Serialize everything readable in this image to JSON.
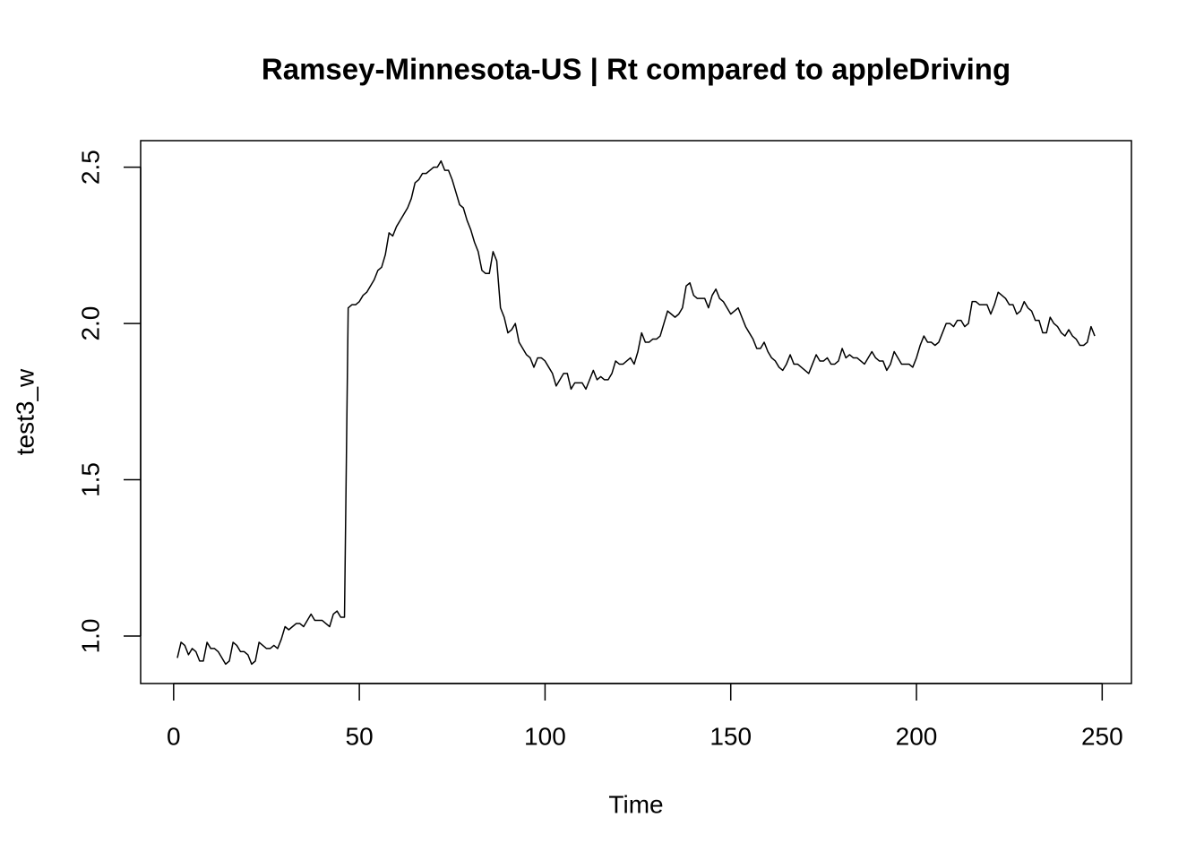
{
  "chart_data": {
    "type": "line",
    "title": "Ramsey-Minnesota-US | Rt compared to appleDriving",
    "x_label": "Time",
    "y_label": "test3_w",
    "xlim": [
      -8.88,
      257.88
    ],
    "ylim": [
      0.848,
      2.585
    ],
    "xticks": [
      0,
      50,
      100,
      150,
      200,
      250
    ],
    "yticks": [
      {
        "value": 1,
        "label": "1.0"
      },
      {
        "value": 1.5,
        "label": "1.5"
      },
      {
        "value": 2,
        "label": "2.0"
      },
      {
        "value": 2.5,
        "label": "2.5"
      }
    ],
    "grid": false,
    "x": [
      1,
      2,
      3,
      4,
      5,
      6,
      7,
      8,
      9,
      10,
      11,
      12,
      13,
      14,
      15,
      16,
      17,
      18,
      19,
      20,
      21,
      22,
      23,
      24,
      25,
      26,
      27,
      28,
      29,
      30,
      31,
      32,
      33,
      34,
      35,
      36,
      37,
      38,
      39,
      40,
      41,
      42,
      43,
      44,
      45,
      46,
      47,
      48,
      49,
      50,
      51,
      52,
      53,
      54,
      55,
      56,
      57,
      58,
      59,
      60,
      61,
      62,
      63,
      64,
      65,
      66,
      67,
      68,
      69,
      70,
      71,
      72,
      73,
      74,
      75,
      76,
      77,
      78,
      79,
      80,
      81,
      82,
      83,
      84,
      85,
      86,
      87,
      88,
      89,
      90,
      91,
      92,
      93,
      94,
      95,
      96,
      97,
      98,
      99,
      100,
      101,
      102,
      103,
      104,
      105,
      106,
      107,
      108,
      109,
      110,
      111,
      112,
      113,
      114,
      115,
      116,
      117,
      118,
      119,
      120,
      121,
      122,
      123,
      124,
      125,
      126,
      127,
      128,
      129,
      130,
      131,
      132,
      133,
      134,
      135,
      136,
      137,
      138,
      139,
      140,
      141,
      142,
      143,
      144,
      145,
      146,
      147,
      148,
      149,
      150,
      151,
      152,
      153,
      154,
      155,
      156,
      157,
      158,
      159,
      160,
      161,
      162,
      163,
      164,
      165,
      166,
      167,
      168,
      169,
      170,
      171,
      172,
      173,
      174,
      175,
      176,
      177,
      178,
      179,
      180,
      181,
      182,
      183,
      184,
      185,
      186,
      187,
      188,
      189,
      190,
      191,
      192,
      193,
      194,
      195,
      196,
      197,
      198,
      199,
      200,
      201,
      202,
      203,
      204,
      205,
      206,
      207,
      208,
      209,
      210,
      211,
      212,
      213,
      214,
      215,
      216,
      217,
      218,
      219,
      220,
      221,
      222,
      223,
      224,
      225,
      226,
      227,
      228,
      229,
      230,
      231,
      232,
      233,
      234,
      235,
      236,
      237,
      238,
      239,
      240,
      241,
      242,
      243,
      244,
      245,
      246,
      247,
      248
    ],
    "series": [
      {
        "color": "#000000",
        "values": [
          0.93,
          0.98,
          0.97,
          0.94,
          0.96,
          0.95,
          0.92,
          0.92,
          0.98,
          0.96,
          0.96,
          0.95,
          0.93,
          0.91,
          0.92,
          0.98,
          0.97,
          0.95,
          0.95,
          0.94,
          0.91,
          0.92,
          0.98,
          0.97,
          0.96,
          0.96,
          0.97,
          0.96,
          0.99,
          1.03,
          1.02,
          1.03,
          1.04,
          1.04,
          1.03,
          1.05,
          1.07,
          1.05,
          1.05,
          1.05,
          1.04,
          1.03,
          1.07,
          1.08,
          1.06,
          1.06,
          2.05,
          2.06,
          2.06,
          2.07,
          2.09,
          2.1,
          2.12,
          2.14,
          2.17,
          2.18,
          2.22,
          2.29,
          2.28,
          2.31,
          2.33,
          2.35,
          2.37,
          2.4,
          2.45,
          2.46,
          2.48,
          2.48,
          2.49,
          2.5,
          2.5,
          2.52,
          2.49,
          2.49,
          2.46,
          2.42,
          2.38,
          2.37,
          2.33,
          2.3,
          2.26,
          2.23,
          2.17,
          2.16,
          2.16,
          2.23,
          2.2,
          2.05,
          2.02,
          1.97,
          1.98,
          2.0,
          1.94,
          1.92,
          1.9,
          1.89,
          1.86,
          1.89,
          1.89,
          1.88,
          1.86,
          1.84,
          1.8,
          1.82,
          1.84,
          1.84,
          1.79,
          1.81,
          1.81,
          1.81,
          1.79,
          1.82,
          1.85,
          1.82,
          1.83,
          1.82,
          1.82,
          1.84,
          1.88,
          1.87,
          1.87,
          1.88,
          1.89,
          1.87,
          1.91,
          1.97,
          1.94,
          1.94,
          1.95,
          1.95,
          1.96,
          2.0,
          2.04,
          2.03,
          2.02,
          2.03,
          2.05,
          2.12,
          2.13,
          2.09,
          2.08,
          2.08,
          2.08,
          2.05,
          2.09,
          2.11,
          2.08,
          2.07,
          2.05,
          2.03,
          2.04,
          2.05,
          2.02,
          1.99,
          1.97,
          1.95,
          1.92,
          1.92,
          1.94,
          1.91,
          1.89,
          1.88,
          1.86,
          1.85,
          1.87,
          1.9,
          1.87,
          1.87,
          1.86,
          1.85,
          1.84,
          1.87,
          1.9,
          1.88,
          1.88,
          1.89,
          1.87,
          1.87,
          1.88,
          1.92,
          1.89,
          1.9,
          1.89,
          1.89,
          1.88,
          1.87,
          1.89,
          1.91,
          1.89,
          1.88,
          1.88,
          1.85,
          1.87,
          1.91,
          1.89,
          1.87,
          1.87,
          1.87,
          1.86,
          1.89,
          1.93,
          1.96,
          1.94,
          1.94,
          1.93,
          1.94,
          1.97,
          2.0,
          2.0,
          1.99,
          2.01,
          2.01,
          1.99,
          2.0,
          2.07,
          2.07,
          2.06,
          2.06,
          2.06,
          2.03,
          2.06,
          2.1,
          2.09,
          2.08,
          2.06,
          2.06,
          2.03,
          2.04,
          2.07,
          2.05,
          2.04,
          2.01,
          2.01,
          1.97,
          1.97,
          2.02,
          2.0,
          1.99,
          1.97,
          1.96,
          1.98,
          1.96,
          1.95,
          1.93,
          1.93,
          1.94,
          1.99,
          1.96
        ]
      }
    ]
  }
}
